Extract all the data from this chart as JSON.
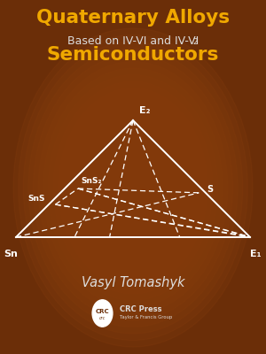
{
  "bg_color": "#6B2E08",
  "bg_gradient_center": "#8B4010",
  "title1": "Quaternary Alloys",
  "title1_color": "#F0A800",
  "subtitle": "Based on IV-VI and IV-VI",
  "subtitle_sub": "2",
  "subtitle_color": "#DDDDDD",
  "title2": "Semiconductors",
  "title2_color": "#F0A800",
  "author": "Vasyl Tomashyk",
  "author_color": "#DDDDDD",
  "line_color": "#FFFFFF",
  "label_color": "#FFFFFF",
  "sn_label": "Sn",
  "e1_label": "E₁",
  "e2_label": "E₂",
  "s_label": "S",
  "sns_label": "SnS",
  "sns2_label": "SnS₂"
}
